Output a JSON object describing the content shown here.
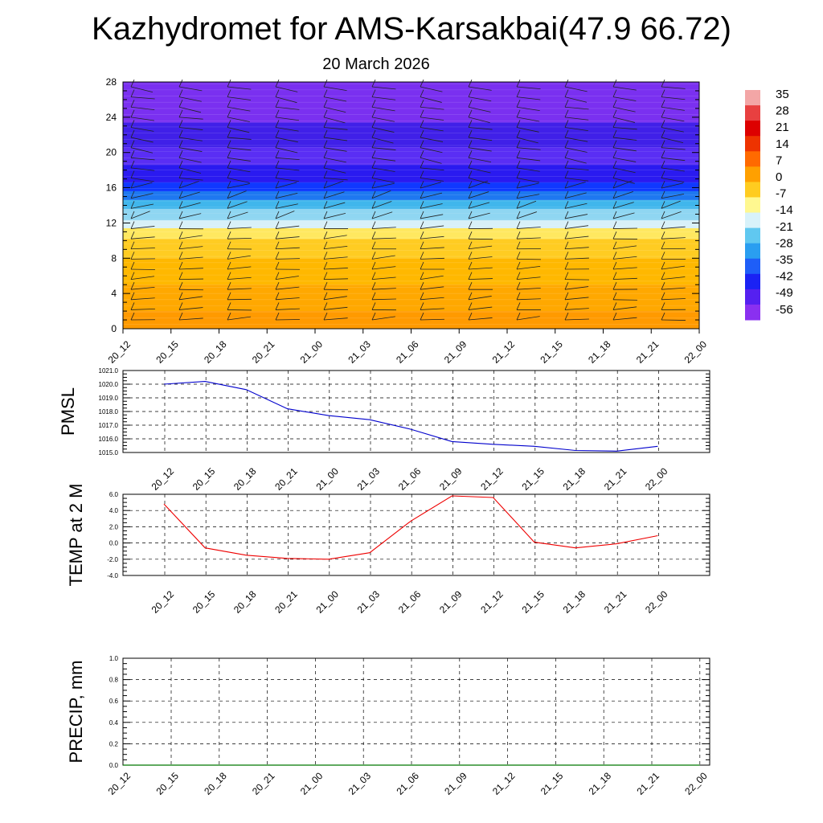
{
  "header": {
    "title": "Kazhydromet for AMS-Karsakbai(47.9 66.72)",
    "subtitle": "20 March 2026"
  },
  "chart_data": [
    {
      "type": "heatmap",
      "ylim": [
        0,
        28
      ],
      "yticks": [
        "0",
        "4",
        "8",
        "12",
        "16",
        "20",
        "24",
        "28"
      ],
      "categories": [
        "20_12",
        "20_15",
        "20_18",
        "20_21",
        "21_00",
        "21_03",
        "21_06",
        "21_09",
        "21_12",
        "21_15",
        "21_18",
        "21_21",
        "22_00"
      ],
      "legend": {
        "position": "right",
        "labels": [
          "35",
          "28",
          "21",
          "14",
          "7",
          "0",
          "-7",
          "-14",
          "-21",
          "-28",
          "-35",
          "-42",
          "-49",
          "-56"
        ]
      },
      "bands": [
        {
          "from": 0,
          "to": 2,
          "color": "#ff9a00"
        },
        {
          "from": 2,
          "to": 5,
          "color": "#ffa800"
        },
        {
          "from": 5,
          "to": 8,
          "color": "#ffb800"
        },
        {
          "from": 8,
          "to": 10.2,
          "color": "#ffcc22"
        },
        {
          "from": 10.2,
          "to": 11.4,
          "color": "#ffe860"
        },
        {
          "from": 11.4,
          "to": 12.3,
          "color": "#d8f0f8"
        },
        {
          "from": 12.3,
          "to": 13.6,
          "color": "#8fd6f2"
        },
        {
          "from": 13.6,
          "to": 14.6,
          "color": "#40b6ec"
        },
        {
          "from": 14.6,
          "to": 15.6,
          "color": "#1e78f0"
        },
        {
          "from": 15.6,
          "to": 16.6,
          "color": "#1038ff"
        },
        {
          "from": 16.6,
          "to": 18.6,
          "color": "#2a1af0"
        },
        {
          "from": 18.6,
          "to": 20.6,
          "color": "#5a2ef4"
        },
        {
          "from": 20.6,
          "to": 23.4,
          "color": "#4020e8"
        },
        {
          "from": 23.4,
          "to": 28,
          "color": "#7a30f0"
        }
      ],
      "barb_x": [
        "20_12",
        "20_15",
        "20_18",
        "20_21",
        "21_00",
        "21_03",
        "21_06",
        "21_09",
        "21_12",
        "21_15",
        "21_18",
        "21_21"
      ]
    },
    {
      "type": "line",
      "ylabel": "PMSL",
      "ylim": [
        1015,
        1021
      ],
      "yticks": [
        "1015.0",
        "1016.0",
        "1017.0",
        "1018.0",
        "1019.0",
        "1020.0",
        "1021.0"
      ],
      "x": [
        "20_12",
        "20_15",
        "20_18",
        "20_21",
        "21_00",
        "21_03",
        "21_06",
        "21_09",
        "21_12",
        "21_15",
        "21_18",
        "21_21",
        "22_00"
      ],
      "series": [
        {
          "color": "#0000cc",
          "values": [
            1020.0,
            1020.2,
            1019.6,
            1018.2,
            1017.7,
            1017.4,
            1016.7,
            1015.8,
            1015.6,
            1015.45,
            1015.15,
            1015.1,
            1015.45
          ]
        }
      ]
    },
    {
      "type": "line",
      "ylabel": "TEMP at 2 M",
      "ylim": [
        -4,
        6
      ],
      "yticks": [
        "-4.0",
        "-2.0",
        "0.0",
        "2.0",
        "4.0",
        "6.0"
      ],
      "x": [
        "20_12",
        "20_15",
        "20_18",
        "20_21",
        "21_00",
        "21_03",
        "21_06",
        "21_09",
        "21_12",
        "21_15",
        "21_18",
        "21_21",
        "22_00"
      ],
      "series": [
        {
          "color": "#ee0000",
          "values": [
            4.8,
            -0.6,
            -1.5,
            -1.9,
            -2.0,
            -1.2,
            2.7,
            5.8,
            5.6,
            0.1,
            -0.6,
            -0.1,
            0.9
          ]
        }
      ]
    },
    {
      "type": "line",
      "ylabel": "PRECIP, mm",
      "ylim": [
        0,
        1
      ],
      "yticks": [
        "0.0",
        "0.2",
        "0.4",
        "0.6",
        "0.8",
        "1.0"
      ],
      "categories": [
        "20_12",
        "20_15",
        "20_18",
        "20_21",
        "21_00",
        "21_03",
        "21_06",
        "21_09",
        "21_12",
        "21_15",
        "21_18",
        "21_21",
        "22_00"
      ],
      "series": [
        {
          "color": "#007700",
          "values": [
            0,
            0,
            0,
            0,
            0,
            0,
            0,
            0,
            0,
            0,
            0,
            0,
            0
          ]
        }
      ]
    }
  ]
}
